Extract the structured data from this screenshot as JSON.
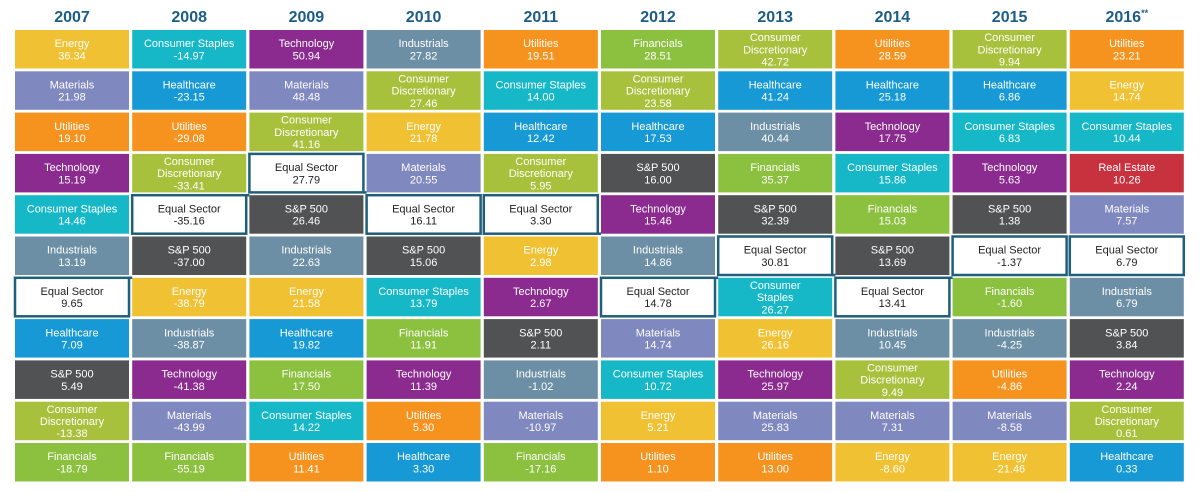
{
  "chart_data": {
    "type": "table",
    "title": "",
    "years": [
      "2007",
      "2008",
      "2009",
      "2010",
      "2011",
      "2012",
      "2013",
      "2014",
      "2015",
      "2016"
    ],
    "year_superscripts": [
      "",
      "",
      "",
      "",
      "",
      "",
      "",
      "",
      "",
      "**"
    ],
    "highlight_sector": "Equal Sector",
    "sector_colors": {
      "Energy": "#f0c132",
      "Materials": "#8088c0",
      "Utilities": "#f6921e",
      "Technology": "#8b2a8f",
      "Consumer Staples": "#16b8c8",
      "Industrials": "#6d8fa6",
      "Equal Sector": "#ffffff",
      "Healthcare": "#1699d4",
      "S&P 500": "#505254",
      "Consumer Discretionary": "#a7c13c",
      "Financials": "#8cc13f",
      "Real Estate": "#c8323f"
    },
    "columns": [
      [
        [
          "Energy",
          "36.34"
        ],
        [
          "Materials",
          "21.98"
        ],
        [
          "Utilities",
          "19.10"
        ],
        [
          "Technology",
          "15.19"
        ],
        [
          "Consumer Staples",
          "14.46"
        ],
        [
          "Industrials",
          "13.19"
        ],
        [
          "Equal Sector",
          "9.65"
        ],
        [
          "Healthcare",
          "7.09"
        ],
        [
          "S&P 500",
          "5.49"
        ],
        [
          "Consumer Discretionary",
          "-13.38"
        ],
        [
          "Financials",
          "-18.79"
        ]
      ],
      [
        [
          "Consumer Staples",
          "-14.97"
        ],
        [
          "Healthcare",
          "-23.15"
        ],
        [
          "Utilities",
          "-29.08"
        ],
        [
          "Consumer Discretionary",
          "-33.41"
        ],
        [
          "Equal Sector",
          "-35.16"
        ],
        [
          "S&P 500",
          "-37.00"
        ],
        [
          "Energy",
          "-38.79"
        ],
        [
          "Industrials",
          "-38.87"
        ],
        [
          "Technology",
          "-41.38"
        ],
        [
          "Materials",
          "-43.99"
        ],
        [
          "Financials",
          "-55.19"
        ]
      ],
      [
        [
          "Technology",
          "50.94"
        ],
        [
          "Materials",
          "48.48"
        ],
        [
          "Consumer Discretionary",
          "41.16"
        ],
        [
          "Equal Sector",
          "27.79"
        ],
        [
          "S&P 500",
          "26.46"
        ],
        [
          "Industrials",
          "22.63"
        ],
        [
          "Energy",
          "21.58"
        ],
        [
          "Healthcare",
          "19.82"
        ],
        [
          "Financials",
          "17.50"
        ],
        [
          "Consumer Staples",
          "14.22"
        ],
        [
          "Utilities",
          "11.41"
        ]
      ],
      [
        [
          "Industrials",
          "27.82"
        ],
        [
          "Consumer Discretionary",
          "27.46"
        ],
        [
          "Energy",
          "21.78"
        ],
        [
          "Materials",
          "20.55"
        ],
        [
          "Equal Sector",
          "16.11"
        ],
        [
          "S&P 500",
          "15.06"
        ],
        [
          "Consumer Staples",
          "13.79"
        ],
        [
          "Financials",
          "11.91"
        ],
        [
          "Technology",
          "11.39"
        ],
        [
          "Utilities",
          "5.30"
        ],
        [
          "Healthcare",
          "3.30"
        ]
      ],
      [
        [
          "Utilities",
          "19.51"
        ],
        [
          "Consumer Staples",
          "14.00"
        ],
        [
          "Healthcare",
          "12.42"
        ],
        [
          "Consumer Discretionary",
          "5.95"
        ],
        [
          "Equal Sector",
          "3.30"
        ],
        [
          "Energy",
          "2.98"
        ],
        [
          "Technology",
          "2.67"
        ],
        [
          "S&P 500",
          "2.11"
        ],
        [
          "Industrials",
          "-1.02"
        ],
        [
          "Materials",
          "-10.97"
        ],
        [
          "Financials",
          "-17.16"
        ]
      ],
      [
        [
          "Financials",
          "28.51"
        ],
        [
          "Consumer Discretionary",
          "23.58"
        ],
        [
          "Healthcare",
          "17.53"
        ],
        [
          "S&P 500",
          "16.00"
        ],
        [
          "Technology",
          "15.46"
        ],
        [
          "Industrials",
          "14.86"
        ],
        [
          "Equal Sector",
          "14.78"
        ],
        [
          "Materials",
          "14.74"
        ],
        [
          "Consumer Staples",
          "10.72"
        ],
        [
          "Energy",
          "5.21"
        ],
        [
          "Utilities",
          "1.10"
        ]
      ],
      [
        [
          "Consumer Discretionary",
          "42.72"
        ],
        [
          "Healthcare",
          "41.24"
        ],
        [
          "Industrials",
          "40.44"
        ],
        [
          "Financials",
          "35.37"
        ],
        [
          "S&P 500",
          "32.39"
        ],
        [
          "Equal Sector",
          "30.81"
        ],
        [
          "Consumer Staples",
          "26.27"
        ],
        [
          "Energy",
          "26.16"
        ],
        [
          "Technology",
          "25.97"
        ],
        [
          "Materials",
          "25.83"
        ],
        [
          "Utilities",
          "13.00"
        ]
      ],
      [
        [
          "Utilities",
          "28.59"
        ],
        [
          "Healthcare",
          "25.18"
        ],
        [
          "Technology",
          "17.75"
        ],
        [
          "Consumer Staples",
          "15.86"
        ],
        [
          "Financials",
          "15.03"
        ],
        [
          "S&P 500",
          "13.69"
        ],
        [
          "Equal Sector",
          "13.41"
        ],
        [
          "Industrials",
          "10.45"
        ],
        [
          "Consumer Discretionary",
          "9.49"
        ],
        [
          "Materials",
          "7.31"
        ],
        [
          "Energy",
          "-8.60"
        ]
      ],
      [
        [
          "Consumer Discretionary",
          "9.94"
        ],
        [
          "Healthcare",
          "6.86"
        ],
        [
          "Consumer Staples",
          "6.83"
        ],
        [
          "Technology",
          "5.63"
        ],
        [
          "S&P 500",
          "1.38"
        ],
        [
          "Equal Sector",
          "-1.37"
        ],
        [
          "Financials",
          "-1.60"
        ],
        [
          "Industrials",
          "-4.25"
        ],
        [
          "Utilities",
          "-4.86"
        ],
        [
          "Materials",
          "-8.58"
        ],
        [
          "Energy",
          "-21.46"
        ]
      ],
      [
        [
          "Utilities",
          "23.21"
        ],
        [
          "Energy",
          "14.74"
        ],
        [
          "Consumer Staples",
          "10.44"
        ],
        [
          "Real Estate",
          "10.26"
        ],
        [
          "Materials",
          "7.57"
        ],
        [
          "Equal Sector",
          "6.79"
        ],
        [
          "Industrials",
          "6.79"
        ],
        [
          "S&P 500",
          "3.84"
        ],
        [
          "Technology",
          "2.24"
        ],
        [
          "Consumer Discretionary",
          "0.61"
        ],
        [
          "Healthcare",
          "0.33"
        ]
      ]
    ]
  }
}
